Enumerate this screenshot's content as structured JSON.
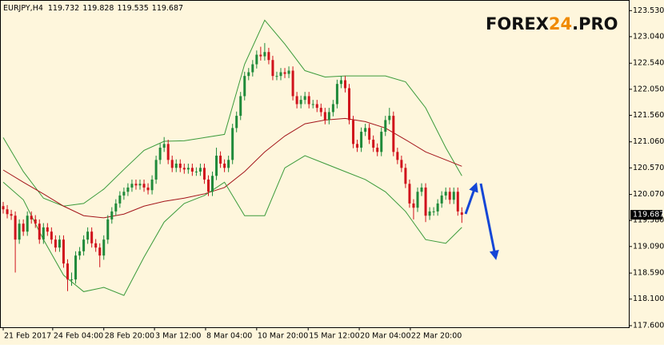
{
  "chart_data": {
    "type": "candlestick",
    "title": "EURJPY,H4",
    "watermark": [
      "FOREX",
      "24",
      ".PRO"
    ],
    "up_color": "#1f8a3a",
    "down_color": "#d0121c",
    "open": [
      119.85,
      119.79,
      119.7,
      119.67,
      119.22,
      119.52,
      119.37,
      119.67,
      119.6,
      119.52,
      119.22,
      119.45,
      119.37,
      119.22,
      119.07,
      119.22,
      118.77,
      118.47,
      118.47,
      118.92,
      119.0,
      119.22,
      119.37,
      119.15,
      119.07,
      118.92,
      119.22,
      119.6,
      119.75,
      119.9,
      120.05,
      120.12,
      120.2,
      120.27,
      120.24,
      120.27,
      120.2,
      120.15,
      120.35,
      120.72,
      120.95,
      121.02,
      120.72,
      120.57,
      120.65,
      120.57,
      120.54,
      120.57,
      120.5,
      120.5,
      120.57,
      120.35,
      120.12,
      120.42,
      120.8,
      120.65,
      120.57,
      120.72,
      121.32,
      121.55,
      121.92,
      122.3,
      122.37,
      122.52,
      122.7,
      122.67,
      122.75,
      122.6,
      122.3,
      122.3,
      122.37,
      122.34,
      122.4,
      121.92,
      121.77,
      121.85,
      121.92,
      121.77,
      121.77,
      121.7,
      121.62,
      121.47,
      121.62,
      121.77,
      122.15,
      122.22,
      122.07,
      121.47,
      121.02,
      120.95,
      121.25,
      121.32,
      121.1,
      120.95,
      120.87,
      121.25,
      121.47,
      121.55,
      120.87,
      120.72,
      120.57,
      120.27,
      119.9,
      119.82,
      120.12,
      120.2,
      119.67,
      119.75,
      119.75,
      119.9,
      120.05,
      120.12,
      119.97,
      120.12,
      119.732
    ],
    "high": [
      119.93,
      119.87,
      119.78,
      119.75,
      119.6,
      119.6,
      119.75,
      119.75,
      119.68,
      119.6,
      119.53,
      119.53,
      119.45,
      119.3,
      119.3,
      119.3,
      118.85,
      118.6,
      119.0,
      119.08,
      119.3,
      119.45,
      119.45,
      119.23,
      119.15,
      119.3,
      119.68,
      119.83,
      119.98,
      120.13,
      120.2,
      120.28,
      120.35,
      120.35,
      120.35,
      120.35,
      120.28,
      120.43,
      120.8,
      121.03,
      121.15,
      121.1,
      120.8,
      120.73,
      120.73,
      120.65,
      120.65,
      120.65,
      120.58,
      120.65,
      120.65,
      120.43,
      120.5,
      120.95,
      120.88,
      120.73,
      120.8,
      121.4,
      121.63,
      122.0,
      122.38,
      122.45,
      122.6,
      122.78,
      122.85,
      122.92,
      122.83,
      122.68,
      122.38,
      122.45,
      122.45,
      122.48,
      122.48,
      122.0,
      121.93,
      122.0,
      122.0,
      121.85,
      121.85,
      121.78,
      121.7,
      121.7,
      121.85,
      122.23,
      122.3,
      122.3,
      122.15,
      121.55,
      121.1,
      121.33,
      121.4,
      121.4,
      121.18,
      121.03,
      121.33,
      121.55,
      121.7,
      121.63,
      120.95,
      120.8,
      120.65,
      120.35,
      119.98,
      120.2,
      120.28,
      120.28,
      119.83,
      119.83,
      119.98,
      120.13,
      120.2,
      120.2,
      120.2,
      120.2,
      119.828
    ],
    "low": [
      119.71,
      119.62,
      119.59,
      118.6,
      119.14,
      119.29,
      119.29,
      119.52,
      119.44,
      119.14,
      119.14,
      119.29,
      119.14,
      118.99,
      118.99,
      118.69,
      118.25,
      118.35,
      118.39,
      118.84,
      118.92,
      119.14,
      119.07,
      118.99,
      118.7,
      118.84,
      119.14,
      119.52,
      119.67,
      119.82,
      119.97,
      120.04,
      120.12,
      120.16,
      120.16,
      120.12,
      120.07,
      120.07,
      120.27,
      120.64,
      120.87,
      120.64,
      120.49,
      120.49,
      120.49,
      120.46,
      120.46,
      120.42,
      120.42,
      120.42,
      120.27,
      120.04,
      120.04,
      120.34,
      120.57,
      120.49,
      120.49,
      120.64,
      121.24,
      121.47,
      121.84,
      122.22,
      122.29,
      122.44,
      122.59,
      122.59,
      122.52,
      122.22,
      122.22,
      122.22,
      122.26,
      122.26,
      121.84,
      121.69,
      121.69,
      121.77,
      121.69,
      121.69,
      121.62,
      121.54,
      121.39,
      121.39,
      121.54,
      121.69,
      122.07,
      121.99,
      121.39,
      120.94,
      120.87,
      120.87,
      121.17,
      121.02,
      120.87,
      120.79,
      120.79,
      121.17,
      121.39,
      120.79,
      120.64,
      120.49,
      120.19,
      119.82,
      119.6,
      119.74,
      120.04,
      119.55,
      119.59,
      119.67,
      119.67,
      119.82,
      119.97,
      119.89,
      119.89,
      119.67,
      119.535
    ],
    "close": [
      119.79,
      119.7,
      119.67,
      119.22,
      119.52,
      119.37,
      119.67,
      119.6,
      119.52,
      119.22,
      119.45,
      119.37,
      119.22,
      119.07,
      119.22,
      118.77,
      118.47,
      118.47,
      118.92,
      119.0,
      119.22,
      119.37,
      119.15,
      119.07,
      118.92,
      119.22,
      119.6,
      119.75,
      119.9,
      120.05,
      120.12,
      120.2,
      120.27,
      120.24,
      120.27,
      120.2,
      120.15,
      120.35,
      120.72,
      120.95,
      121.02,
      120.72,
      120.57,
      120.65,
      120.57,
      120.54,
      120.57,
      120.5,
      120.5,
      120.57,
      120.35,
      120.12,
      120.42,
      120.8,
      120.65,
      120.57,
      120.72,
      121.32,
      121.55,
      121.92,
      122.3,
      122.37,
      122.52,
      122.7,
      122.67,
      122.75,
      122.6,
      122.3,
      122.3,
      122.37,
      122.34,
      122.4,
      121.92,
      121.77,
      121.85,
      121.92,
      121.77,
      121.77,
      121.7,
      121.62,
      121.47,
      121.62,
      121.77,
      122.15,
      122.22,
      122.07,
      121.47,
      121.02,
      120.95,
      121.25,
      121.32,
      121.1,
      120.95,
      120.87,
      121.25,
      121.47,
      121.55,
      120.87,
      120.72,
      120.57,
      120.27,
      119.9,
      119.82,
      120.12,
      120.2,
      119.67,
      119.75,
      119.75,
      119.9,
      120.05,
      120.12,
      119.97,
      120.12,
      119.75,
      119.687
    ],
    "bands": {
      "color": "#3a9a3a",
      "middle_color": "#a3141a",
      "x": [
        0,
        5,
        10,
        15,
        20,
        25,
        30,
        35,
        40,
        45,
        50,
        55,
        60,
        65,
        70,
        75,
        80,
        85,
        90,
        95,
        100,
        105,
        110,
        114
      ],
      "upper": [
        121.14,
        120.5,
        120.0,
        119.85,
        119.9,
        120.17,
        120.54,
        120.9,
        121.07,
        121.08,
        121.14,
        121.2,
        122.52,
        123.35,
        122.9,
        122.4,
        122.28,
        122.3,
        122.3,
        122.3,
        122.19,
        121.7,
        120.95,
        120.42
      ],
      "middle": [
        120.53,
        120.3,
        120.08,
        119.85,
        119.67,
        119.63,
        119.7,
        119.85,
        119.94,
        120.0,
        120.08,
        120.2,
        120.5,
        120.87,
        121.17,
        121.4,
        121.47,
        121.5,
        121.44,
        121.32,
        121.1,
        120.87,
        120.72,
        120.6
      ],
      "lower": [
        120.3,
        119.97,
        119.22,
        118.55,
        118.24,
        118.32,
        118.17,
        118.89,
        119.55,
        119.9,
        120.05,
        120.3,
        119.67,
        119.67,
        120.57,
        120.8,
        120.65,
        120.5,
        120.35,
        120.12,
        119.75,
        119.22,
        119.15,
        119.45
      ]
    },
    "xlim": [
      -0.8,
      155.5
    ],
    "ylim": [
      117.57,
      123.73
    ],
    "yticks": [
      {
        "value": 117.6,
        "label": "117.600"
      },
      {
        "value": 118.1,
        "label": "118.100"
      },
      {
        "value": 118.59,
        "label": "118.590"
      },
      {
        "value": 119.09,
        "label": "119.090"
      },
      {
        "value": 119.58,
        "label": "119.580"
      },
      {
        "value": 120.07,
        "label": "120.070"
      },
      {
        "value": 120.57,
        "label": "120.570"
      },
      {
        "value": 121.06,
        "label": "121.060"
      },
      {
        "value": 121.56,
        "label": "121.560"
      },
      {
        "value": 122.05,
        "label": "122.050"
      },
      {
        "value": 122.54,
        "label": "122.540"
      },
      {
        "value": 123.04,
        "label": "123.040"
      },
      {
        "value": 123.53,
        "label": "123.530"
      }
    ],
    "xticks": [
      {
        "value": 0,
        "label": "21 Feb 2017"
      },
      {
        "value": 12.3,
        "label": "24 Feb 04:00"
      },
      {
        "value": 25,
        "label": "28 Feb 20:00"
      },
      {
        "value": 37.6,
        "label": "3 Mar 12:00"
      },
      {
        "value": 50.3,
        "label": "8 Mar 04:00"
      },
      {
        "value": 63,
        "label": "10 Mar 20:00"
      },
      {
        "value": 75.8,
        "label": "15 Mar 12:00"
      },
      {
        "value": 88.5,
        "label": "20 Mar 04:00"
      },
      {
        "value": 101.2,
        "label": "22 Mar 20:00"
      }
    ],
    "grid": false
  }
}
